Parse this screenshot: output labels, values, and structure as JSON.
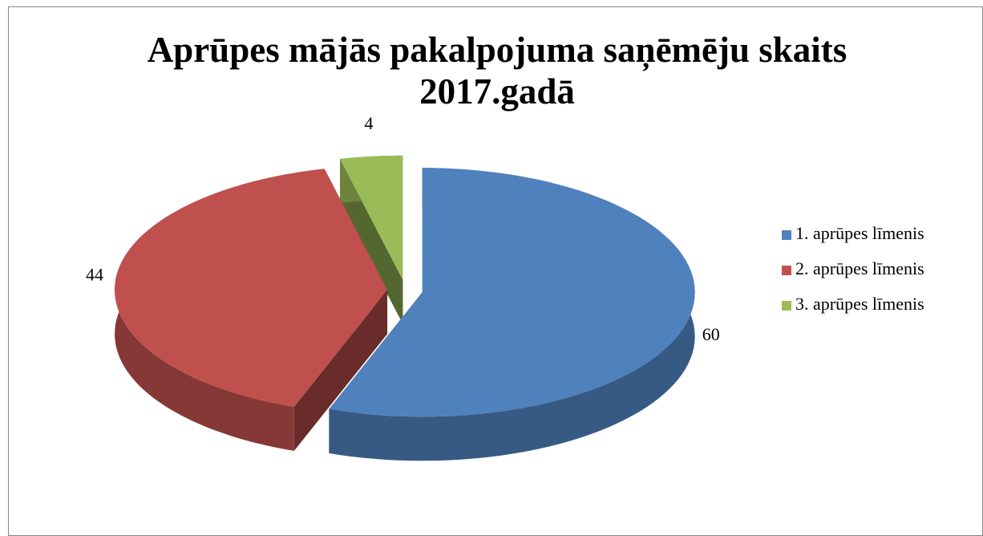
{
  "chart_data": {
    "type": "pie",
    "title": "Aprūpes mājās pakalpojuma saņēmēju skaits 2017.gadā",
    "categories": [
      "1. aprūpes līmenis",
      "2. aprūpes līmenis",
      "3. aprūpes līmenis"
    ],
    "values": [
      60,
      44,
      4
    ],
    "colors": [
      "#4f81bd",
      "#c0504d",
      "#9bbb59"
    ],
    "legend": "right"
  }
}
